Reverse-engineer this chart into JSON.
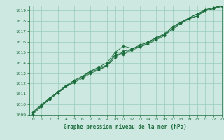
{
  "xlabel": "Graphe pression niveau de la mer (hPa)",
  "xlim": [
    -0.5,
    23
  ],
  "ylim": [
    1009,
    1019.5
  ],
  "yticks": [
    1009,
    1010,
    1011,
    1012,
    1013,
    1014,
    1015,
    1016,
    1017,
    1018,
    1019
  ],
  "xticks": [
    0,
    1,
    2,
    3,
    4,
    5,
    6,
    7,
    8,
    9,
    10,
    11,
    12,
    13,
    14,
    15,
    16,
    17,
    18,
    19,
    20,
    21,
    22,
    23
  ],
  "bg_color": "#cce8e0",
  "grid_color": "#99ccbb",
  "line_color": "#1a6b3a",
  "series": [
    [
      1009.3,
      1010.0,
      1010.6,
      1011.2,
      1011.8,
      1012.3,
      1012.7,
      1013.2,
      1013.6,
      1014.0,
      1015.0,
      1015.6,
      1015.4,
      1015.5,
      1015.8,
      1016.2,
      1016.6,
      1017.3,
      1017.8,
      1018.3,
      1018.5,
      1019.0,
      1019.2,
      1019.5
    ],
    [
      1009.1,
      1009.8,
      1010.5,
      1011.1,
      1011.7,
      1012.1,
      1012.5,
      1013.0,
      1013.3,
      1013.7,
      1014.5,
      1015.1,
      1015.3,
      1015.6,
      1016.0,
      1016.4,
      1016.7,
      1017.5,
      1017.9,
      1018.3,
      1018.7,
      1019.0,
      1019.2,
      1019.4
    ],
    [
      1009.2,
      1009.9,
      1010.5,
      1011.1,
      1011.7,
      1012.2,
      1012.6,
      1013.1,
      1013.4,
      1013.7,
      1014.7,
      1014.8,
      1015.2,
      1015.5,
      1015.9,
      1016.3,
      1016.7,
      1017.2,
      1017.8,
      1018.2,
      1018.5,
      1019.1,
      1019.3,
      1019.5
    ],
    [
      1009.2,
      1009.9,
      1010.6,
      1011.2,
      1011.8,
      1012.3,
      1012.7,
      1013.2,
      1013.5,
      1013.8,
      1014.8,
      1014.9,
      1015.3,
      1015.7,
      1016.0,
      1016.4,
      1016.8,
      1017.4,
      1017.9,
      1018.3,
      1018.7,
      1019.1,
      1019.3,
      1019.5
    ]
  ]
}
